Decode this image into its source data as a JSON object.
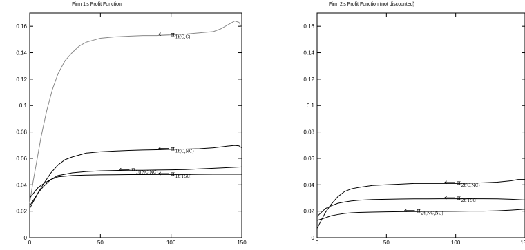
{
  "chart_data": [
    {
      "type": "line",
      "title": "Firm 1's Profit Function",
      "xlabel": "",
      "ylabel": "",
      "xlim": [
        0,
        150
      ],
      "ylim": [
        0,
        0.17
      ],
      "xticks": [
        "0",
        "50",
        "100",
        "150"
      ],
      "yticks": [
        "0",
        "0.02",
        "0.04",
        "0.06",
        "0.08",
        "0.1",
        "0.12",
        "0.14",
        "0.16"
      ],
      "series": [
        {
          "name": "π1(C,C)",
          "color": "#888888",
          "x": [
            0,
            2,
            5,
            8,
            12,
            16,
            20,
            25,
            30,
            35,
            40,
            50,
            60,
            70,
            80,
            90,
            100,
            110,
            120,
            130,
            135,
            140,
            145,
            148,
            150
          ],
          "y": [
            0.026,
            0.04,
            0.058,
            0.076,
            0.096,
            0.112,
            0.124,
            0.134,
            0.14,
            0.145,
            0.148,
            0.151,
            0.152,
            0.1525,
            0.153,
            0.153,
            0.1535,
            0.154,
            0.155,
            0.156,
            0.158,
            0.161,
            0.164,
            0.163,
            0.159
          ]
        },
        {
          "name": "π1(C,NC)",
          "color": "#000000",
          "x": [
            0,
            3,
            6,
            10,
            15,
            20,
            25,
            30,
            40,
            50,
            60,
            70,
            80,
            90,
            100,
            110,
            120,
            130,
            140,
            145,
            148,
            150
          ],
          "y": [
            0.022,
            0.028,
            0.034,
            0.041,
            0.049,
            0.055,
            0.059,
            0.061,
            0.064,
            0.065,
            0.0655,
            0.066,
            0.0663,
            0.0665,
            0.0668,
            0.067,
            0.0673,
            0.068,
            0.0693,
            0.0698,
            0.0695,
            0.068
          ]
        },
        {
          "name": "π1(NC,NC)",
          "color": "#000000",
          "x": [
            0,
            3,
            6,
            10,
            15,
            20,
            25,
            30,
            40,
            50,
            60,
            70,
            80,
            90,
            100,
            110,
            120,
            130,
            140,
            150
          ],
          "y": [
            0.024,
            0.029,
            0.034,
            0.039,
            0.044,
            0.047,
            0.048,
            0.049,
            0.05,
            0.0505,
            0.0508,
            0.051,
            0.051,
            0.0512,
            0.0513,
            0.0515,
            0.052,
            0.0525,
            0.053,
            0.0535
          ]
        },
        {
          "name": "π1(TSC)",
          "color": "#000000",
          "x": [
            0,
            3,
            6,
            10,
            15,
            20,
            25,
            30,
            40,
            50,
            60,
            70,
            80,
            90,
            100,
            110,
            120,
            130,
            140,
            150
          ],
          "y": [
            0.03,
            0.034,
            0.038,
            0.041,
            0.044,
            0.046,
            0.0465,
            0.047,
            0.0473,
            0.0475,
            0.0476,
            0.0477,
            0.0477,
            0.0478,
            0.0478,
            0.0478,
            0.0479,
            0.048,
            0.048,
            0.048
          ]
        }
      ],
      "annotations": [
        {
          "series": "π1(C,C)",
          "label": "1t(C,C)",
          "x": 100,
          "y": 0.154
        },
        {
          "series": "π1(C,NC)",
          "label": "1t(C,NC)",
          "x": 100,
          "y": 0.0675
        },
        {
          "series": "π1(NC,NC)",
          "label": "1t(NC,NC)",
          "x": 72,
          "y": 0.0515
        },
        {
          "series": "π1(TSC)",
          "label": "1t(TSC)",
          "x": 100,
          "y": 0.0485
        }
      ]
    },
    {
      "type": "line",
      "title": "Firm 2's Profit Function (not discounted)",
      "xlabel": "",
      "ylabel": "",
      "xlim": [
        0,
        150
      ],
      "ylim": [
        0,
        0.17
      ],
      "xticks": [
        "0",
        "50",
        "100",
        "150"
      ],
      "yticks": [
        "0",
        "0.02",
        "0.04",
        "0.06",
        "0.08",
        "0.1",
        "0.12",
        "0.14",
        "0.16"
      ],
      "series": [
        {
          "name": "π2(C,NC)",
          "color": "#000000",
          "x": [
            0,
            3,
            6,
            10,
            15,
            20,
            25,
            30,
            40,
            50,
            60,
            70,
            80,
            90,
            100,
            110,
            120,
            130,
            140,
            145,
            150
          ],
          "y": [
            0.007,
            0.013,
            0.019,
            0.025,
            0.031,
            0.035,
            0.037,
            0.038,
            0.0395,
            0.04,
            0.0405,
            0.041,
            0.041,
            0.041,
            0.041,
            0.0412,
            0.0415,
            0.042,
            0.043,
            0.044,
            0.044
          ]
        },
        {
          "name": "π2(TSC)",
          "color": "#000000",
          "x": [
            0,
            3,
            6,
            10,
            15,
            20,
            25,
            30,
            40,
            50,
            60,
            70,
            80,
            90,
            100,
            110,
            120,
            130,
            140,
            150
          ],
          "y": [
            0.016,
            0.019,
            0.022,
            0.024,
            0.026,
            0.027,
            0.0278,
            0.0283,
            0.0288,
            0.029,
            0.0292,
            0.0293,
            0.0293,
            0.0294,
            0.0294,
            0.0294,
            0.0294,
            0.0293,
            0.029,
            0.0285
          ]
        },
        {
          "name": "π2(NC,NC)",
          "color": "#000000",
          "x": [
            0,
            3,
            6,
            10,
            15,
            20,
            25,
            30,
            40,
            50,
            60,
            70,
            80,
            90,
            100,
            110,
            120,
            130,
            140,
            150
          ],
          "y": [
            0.013,
            0.014,
            0.015,
            0.0165,
            0.0175,
            0.0183,
            0.0188,
            0.019,
            0.0193,
            0.0195,
            0.0196,
            0.0197,
            0.0198,
            0.0198,
            0.0199,
            0.02,
            0.02,
            0.0203,
            0.0208,
            0.0215
          ]
        }
      ],
      "annotations": [
        {
          "series": "π2(C,NC)",
          "label": "2t(C,NC)",
          "x": 101,
          "y": 0.0418
        },
        {
          "series": "π2(TSC)",
          "label": "2t(TSC)",
          "x": 101,
          "y": 0.0302
        },
        {
          "series": "π2(NC,NC)",
          "label": "2t(NC,NC)",
          "x": 72,
          "y": 0.0205
        }
      ]
    }
  ]
}
